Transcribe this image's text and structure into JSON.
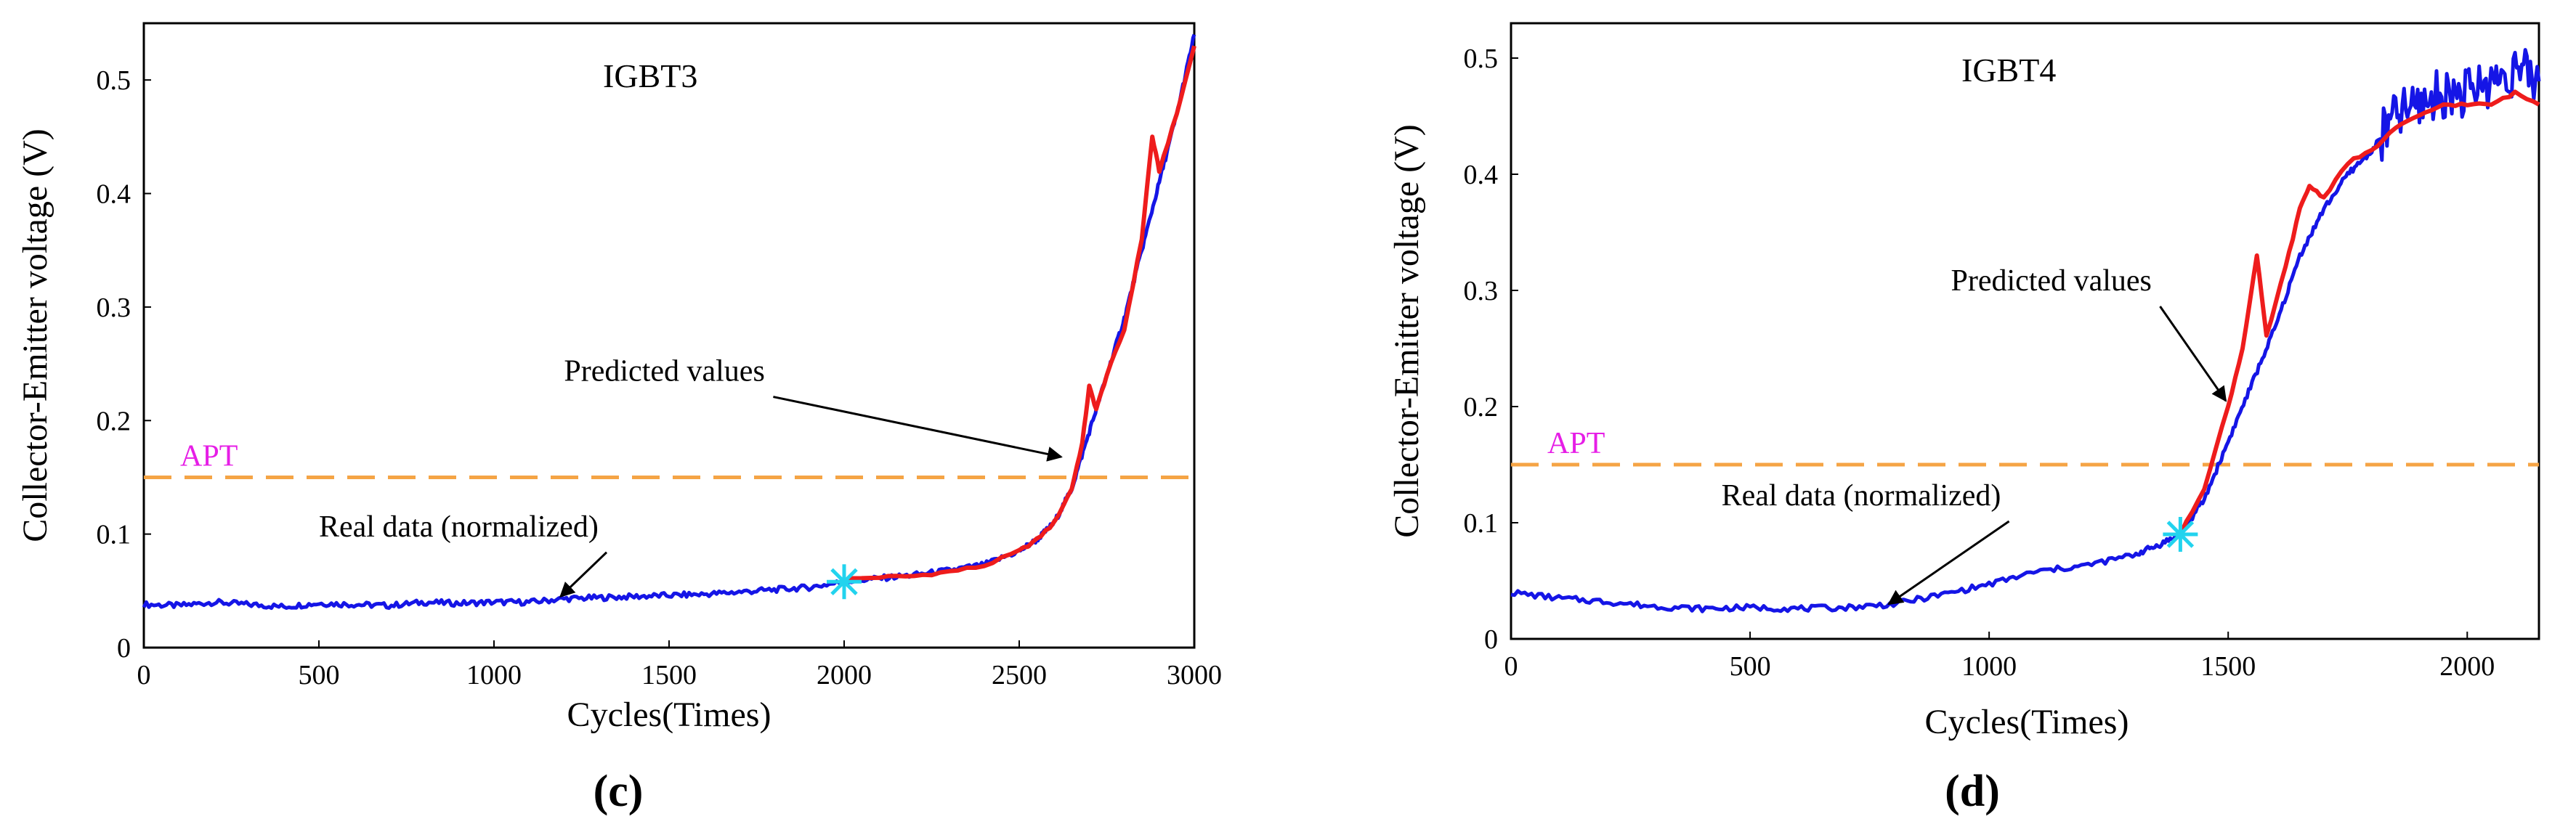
{
  "chart_data": [
    {
      "type": "line",
      "title": "IGBT3",
      "panel_label": "(c)",
      "xlabel": "Cycles(Times)",
      "ylabel": "Collector-Emitter voltage (V)",
      "xlim": [
        0,
        3000
      ],
      "ylim": [
        0,
        0.55
      ],
      "xticks": [
        0,
        500,
        1000,
        1500,
        2000,
        2500,
        3000
      ],
      "yticks": [
        0,
        0.1,
        0.2,
        0.3,
        0.4,
        0.5
      ],
      "ytick_labels": [
        "0",
        "0.1",
        "0.2",
        "0.3",
        "0.4",
        "0.5"
      ],
      "threshold": {
        "label": "APT",
        "value": 0.15,
        "color": "#f5a445"
      },
      "start_marker": {
        "x": 2000,
        "y": 0.058,
        "color": "#22d3ee"
      },
      "annotations": [
        {
          "text": "Predicted values",
          "text_x": 1200,
          "text_y": 0.235,
          "target_x": 2620,
          "target_y": 0.168
        },
        {
          "text": "Real data (normalized)",
          "text_x": 500,
          "text_y": 0.098,
          "target_x": 1190,
          "target_y": 0.045
        }
      ],
      "series": [
        {
          "color": "#1515e6",
          "points": [
            [
              0,
              0.038
            ],
            [
              100,
              0.037
            ],
            [
              200,
              0.04
            ],
            [
              300,
              0.038
            ],
            [
              400,
              0.036
            ],
            [
              500,
              0.039
            ],
            [
              600,
              0.038
            ],
            [
              700,
              0.037
            ],
            [
              800,
              0.04
            ],
            [
              900,
              0.039
            ],
            [
              1000,
              0.04
            ],
            [
              1100,
              0.04
            ],
            [
              1200,
              0.043
            ],
            [
              1300,
              0.044
            ],
            [
              1400,
              0.045
            ],
            [
              1500,
              0.046
            ],
            [
              1600,
              0.047
            ],
            [
              1700,
              0.049
            ],
            [
              1800,
              0.051
            ],
            [
              1900,
              0.053
            ],
            [
              2000,
              0.058
            ],
            [
              2100,
              0.061
            ],
            [
              2200,
              0.064
            ],
            [
              2300,
              0.068
            ],
            [
              2400,
              0.073
            ],
            [
              2500,
              0.085
            ],
            [
              2550,
              0.095
            ],
            [
              2600,
              0.11
            ],
            [
              2650,
              0.14
            ],
            [
              2700,
              0.19
            ],
            [
              2750,
              0.24
            ],
            [
              2800,
              0.29
            ],
            [
              2850,
              0.35
            ],
            [
              2900,
              0.41
            ],
            [
              2950,
              0.47
            ],
            [
              3000,
              0.54
            ]
          ]
        },
        {
          "color": "#ee1c1c",
          "points": [
            [
              2000,
              0.06
            ],
            [
              2100,
              0.062
            ],
            [
              2200,
              0.063
            ],
            [
              2300,
              0.067
            ],
            [
              2400,
              0.072
            ],
            [
              2500,
              0.085
            ],
            [
              2550,
              0.095
            ],
            [
              2600,
              0.11
            ],
            [
              2650,
              0.14
            ],
            [
              2680,
              0.18
            ],
            [
              2700,
              0.23
            ],
            [
              2720,
              0.21
            ],
            [
              2750,
              0.24
            ],
            [
              2800,
              0.28
            ],
            [
              2850,
              0.36
            ],
            [
              2880,
              0.45
            ],
            [
              2900,
              0.42
            ],
            [
              2950,
              0.47
            ],
            [
              3000,
              0.53
            ]
          ]
        }
      ]
    },
    {
      "type": "line",
      "title": "IGBT4",
      "panel_label": "(d)",
      "xlabel": "Cycles(Times)",
      "ylabel": "Collector-Emitter voltage (V)",
      "xlim": [
        0,
        2150
      ],
      "ylim": [
        0,
        0.53
      ],
      "xticks": [
        0,
        500,
        1000,
        1500,
        2000
      ],
      "yticks": [
        0,
        0.1,
        0.2,
        0.3,
        0.4,
        0.5
      ],
      "ytick_labels": [
        "0",
        "0.1",
        "0.2",
        "0.3",
        "0.4",
        "0.5"
      ],
      "threshold": {
        "label": "APT",
        "value": 0.15,
        "color": "#f5a445"
      },
      "start_marker": {
        "x": 1400,
        "y": 0.09,
        "color": "#22d3ee"
      },
      "annotations": [
        {
          "text": "Predicted values",
          "text_x": 920,
          "text_y": 0.3,
          "target_x": 1495,
          "target_y": 0.205
        },
        {
          "text": "Real data (normalized)",
          "text_x": 440,
          "text_y": 0.115,
          "target_x": 790,
          "target_y": 0.03
        }
      ],
      "series": [
        {
          "color": "#1515e6",
          "points": [
            [
              0,
              0.04
            ],
            [
              100,
              0.035
            ],
            [
              200,
              0.032
            ],
            [
              300,
              0.028
            ],
            [
              400,
              0.026
            ],
            [
              500,
              0.027
            ],
            [
              600,
              0.026
            ],
            [
              700,
              0.027
            ],
            [
              800,
              0.03
            ],
            [
              900,
              0.038
            ],
            [
              1000,
              0.047
            ],
            [
              1100,
              0.058
            ],
            [
              1200,
              0.063
            ],
            [
              1300,
              0.072
            ],
            [
              1350,
              0.08
            ],
            [
              1400,
              0.09
            ],
            [
              1450,
              0.12
            ],
            [
              1500,
              0.17
            ],
            [
              1550,
              0.22
            ],
            [
              1600,
              0.27
            ],
            [
              1650,
              0.33
            ],
            [
              1700,
              0.37
            ],
            [
              1750,
              0.4
            ],
            [
              1800,
              0.42
            ],
            [
              1850,
              0.45
            ],
            [
              1900,
              0.46
            ],
            [
              1950,
              0.47
            ],
            [
              2000,
              0.47
            ],
            [
              2050,
              0.48
            ],
            [
              2100,
              0.49
            ],
            [
              2150,
              0.48
            ]
          ]
        },
        {
          "color": "#ee1c1c",
          "points": [
            [
              1400,
              0.09
            ],
            [
              1450,
              0.13
            ],
            [
              1500,
              0.2
            ],
            [
              1530,
              0.25
            ],
            [
              1560,
              0.33
            ],
            [
              1580,
              0.26
            ],
            [
              1620,
              0.32
            ],
            [
              1650,
              0.37
            ],
            [
              1670,
              0.39
            ],
            [
              1700,
              0.38
            ],
            [
              1750,
              0.41
            ],
            [
              1800,
              0.42
            ],
            [
              1850,
              0.44
            ],
            [
              1900,
              0.45
            ],
            [
              1950,
              0.46
            ],
            [
              2000,
              0.46
            ],
            [
              2050,
              0.46
            ],
            [
              2100,
              0.47
            ],
            [
              2150,
              0.46
            ]
          ]
        }
      ]
    }
  ]
}
